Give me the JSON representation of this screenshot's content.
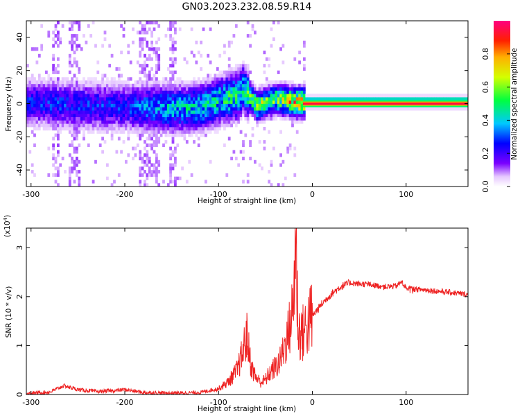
{
  "title": "GN03.2023.232.08.59.R14",
  "chart_data": [
    {
      "type": "heatmap",
      "name": "spectrogram",
      "xlabel": "Height of straight line (km)",
      "ylabel": "Frequency (Hz)",
      "xlim": [
        -305,
        166
      ],
      "ylim": [
        -50,
        50
      ],
      "xticks": [
        -300,
        -200,
        -100,
        0,
        100
      ],
      "yticks": [
        -40,
        -20,
        0,
        20,
        40
      ],
      "colorbar": {
        "label": "Normalized spectral amplitude",
        "range": [
          0,
          1
        ],
        "ticks": [
          0.0,
          0.2,
          0.4,
          0.6,
          0.8
        ],
        "tick_labels": [
          "0.0",
          "0.2",
          "0.4",
          "0.6",
          "0.8"
        ],
        "colormap": "rainbow (white-violet-blue-cyan-green-yellow-orange-red-magenta)"
      },
      "ridge": [
        {
          "x": -305,
          "f": 0,
          "amp": 0.3
        },
        {
          "x": -250,
          "f": -2,
          "amp": 0.3
        },
        {
          "x": -200,
          "f": -3,
          "amp": 0.3
        },
        {
          "x": -150,
          "f": -4,
          "amp": 0.45
        },
        {
          "x": -120,
          "f": -3,
          "amp": 0.45
        },
        {
          "x": -100,
          "f": 1,
          "amp": 0.5
        },
        {
          "x": -80,
          "f": 4,
          "amp": 0.55
        },
        {
          "x": -75,
          "f": 8,
          "amp": 0.5
        },
        {
          "x": -60,
          "f": -2,
          "amp": 0.7
        },
        {
          "x": -40,
          "f": 2,
          "amp": 0.6
        },
        {
          "x": -20,
          "f": 0,
          "amp": 0.85
        },
        {
          "x": 0,
          "f": 0,
          "amp": 0.9
        },
        {
          "x": 166,
          "f": 0,
          "amp": 0.95
        }
      ]
    },
    {
      "type": "line",
      "name": "snr",
      "xlabel": "Height of straight line (km)",
      "ylabel": "SNR (10 * v/v)",
      "yscale_label": "(x10",
      "yscale_exp": "4",
      "xlim": [
        -305,
        166
      ],
      "ylim": [
        0,
        3.4
      ],
      "xticks": [
        -300,
        -200,
        -100,
        0,
        100
      ],
      "yticks": [
        0,
        1,
        2,
        3
      ],
      "color": "#ee2222",
      "series": [
        {
          "x": [
            -305,
            -280,
            -265,
            -250,
            -230,
            -210,
            -200,
            -180,
            -160,
            -140,
            -120,
            -100,
            -90,
            -80,
            -75,
            -70,
            -65,
            -60,
            -55,
            -50,
            -45,
            -40,
            -35,
            -30,
            -25,
            -20,
            -18,
            -15,
            -10,
            -5,
            0,
            10,
            20,
            30,
            40,
            50,
            60,
            70,
            80,
            90,
            95,
            100,
            110,
            120,
            130,
            140,
            150,
            166
          ],
          "y": [
            0.02,
            0.05,
            0.18,
            0.1,
            0.06,
            0.08,
            0.1,
            0.04,
            0.03,
            0.03,
            0.04,
            0.12,
            0.25,
            0.5,
            0.8,
            1.2,
            0.55,
            0.35,
            0.25,
            0.3,
            0.45,
            0.55,
            0.65,
            0.95,
            1.3,
            1.85,
            3.3,
            1.3,
            1.25,
            1.45,
            1.6,
            1.85,
            2.05,
            2.2,
            2.28,
            2.26,
            2.25,
            2.22,
            2.2,
            2.22,
            2.3,
            2.18,
            2.15,
            2.14,
            2.12,
            2.1,
            2.08,
            2.04
          ]
        }
      ]
    }
  ]
}
